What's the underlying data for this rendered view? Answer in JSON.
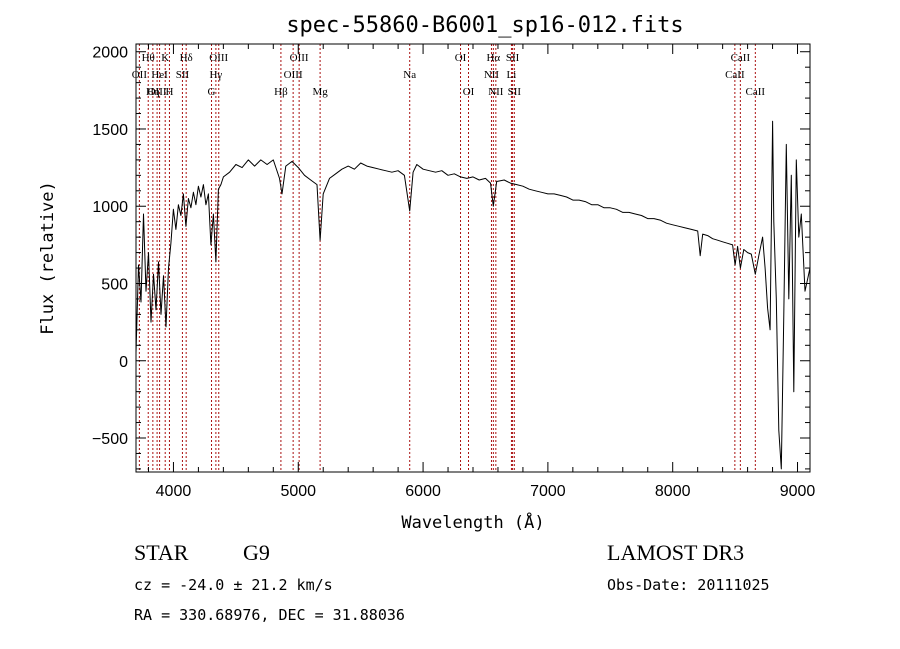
{
  "chart_data": {
    "type": "line",
    "title": "spec-55860-B6001_sp16-012.fits",
    "xlabel": "Wavelength (Å)",
    "ylabel": "Flux (relative)",
    "xlim": [
      3700,
      9100
    ],
    "ylim": [
      -720,
      2050
    ],
    "x_ticks": [
      4000,
      5000,
      6000,
      7000,
      8000,
      9000
    ],
    "y_ticks": [
      -500,
      0,
      500,
      1000,
      1500,
      2000
    ],
    "grid": false,
    "series": [
      {
        "points": [
          [
            3700,
            50
          ],
          [
            3720,
            620
          ],
          [
            3740,
            380
          ],
          [
            3760,
            950
          ],
          [
            3780,
            450
          ],
          [
            3800,
            700
          ],
          [
            3820,
            250
          ],
          [
            3840,
            560
          ],
          [
            3860,
            330
          ],
          [
            3880,
            640
          ],
          [
            3900,
            300
          ],
          [
            3920,
            550
          ],
          [
            3940,
            220
          ],
          [
            3960,
            600
          ],
          [
            3980,
            760
          ],
          [
            4000,
            980
          ],
          [
            4020,
            850
          ],
          [
            4040,
            1010
          ],
          [
            4060,
            940
          ],
          [
            4080,
            1080
          ],
          [
            4100,
            870
          ],
          [
            4120,
            1050
          ],
          [
            4140,
            990
          ],
          [
            4160,
            1090
          ],
          [
            4180,
            1010
          ],
          [
            4200,
            1130
          ],
          [
            4220,
            1060
          ],
          [
            4240,
            1140
          ],
          [
            4260,
            1010
          ],
          [
            4280,
            1080
          ],
          [
            4300,
            750
          ],
          [
            4320,
            950
          ],
          [
            4340,
            640
          ],
          [
            4360,
            1110
          ],
          [
            4380,
            1140
          ],
          [
            4400,
            1190
          ],
          [
            4450,
            1220
          ],
          [
            4500,
            1270
          ],
          [
            4550,
            1250
          ],
          [
            4600,
            1300
          ],
          [
            4650,
            1260
          ],
          [
            4700,
            1300
          ],
          [
            4750,
            1270
          ],
          [
            4800,
            1300
          ],
          [
            4850,
            1180
          ],
          [
            4870,
            1080
          ],
          [
            4900,
            1260
          ],
          [
            4950,
            1290
          ],
          [
            5000,
            1250
          ],
          [
            5050,
            1200
          ],
          [
            5100,
            1170
          ],
          [
            5150,
            1140
          ],
          [
            5175,
            780
          ],
          [
            5200,
            1080
          ],
          [
            5250,
            1180
          ],
          [
            5300,
            1210
          ],
          [
            5350,
            1240
          ],
          [
            5400,
            1260
          ],
          [
            5450,
            1240
          ],
          [
            5500,
            1280
          ],
          [
            5550,
            1260
          ],
          [
            5600,
            1250
          ],
          [
            5650,
            1240
          ],
          [
            5700,
            1230
          ],
          [
            5750,
            1220
          ],
          [
            5800,
            1230
          ],
          [
            5850,
            1200
          ],
          [
            5893,
            970
          ],
          [
            5920,
            1220
          ],
          [
            5950,
            1270
          ],
          [
            6000,
            1240
          ],
          [
            6050,
            1230
          ],
          [
            6100,
            1220
          ],
          [
            6150,
            1230
          ],
          [
            6200,
            1200
          ],
          [
            6250,
            1210
          ],
          [
            6300,
            1190
          ],
          [
            6350,
            1180
          ],
          [
            6400,
            1190
          ],
          [
            6450,
            1170
          ],
          [
            6500,
            1180
          ],
          [
            6540,
            1150
          ],
          [
            6563,
            1000
          ],
          [
            6590,
            1160
          ],
          [
            6650,
            1170
          ],
          [
            6700,
            1150
          ],
          [
            6750,
            1140
          ],
          [
            6800,
            1130
          ],
          [
            6850,
            1110
          ],
          [
            6900,
            1100
          ],
          [
            6950,
            1090
          ],
          [
            7000,
            1080
          ],
          [
            7050,
            1080
          ],
          [
            7100,
            1070
          ],
          [
            7150,
            1060
          ],
          [
            7200,
            1040
          ],
          [
            7250,
            1040
          ],
          [
            7300,
            1030
          ],
          [
            7350,
            1010
          ],
          [
            7400,
            1010
          ],
          [
            7450,
            990
          ],
          [
            7500,
            990
          ],
          [
            7550,
            980
          ],
          [
            7600,
            960
          ],
          [
            7650,
            960
          ],
          [
            7700,
            950
          ],
          [
            7750,
            940
          ],
          [
            7800,
            920
          ],
          [
            7850,
            920
          ],
          [
            7900,
            910
          ],
          [
            7950,
            890
          ],
          [
            8000,
            880
          ],
          [
            8050,
            870
          ],
          [
            8100,
            860
          ],
          [
            8150,
            850
          ],
          [
            8200,
            840
          ],
          [
            8220,
            680
          ],
          [
            8240,
            820
          ],
          [
            8280,
            810
          ],
          [
            8320,
            790
          ],
          [
            8360,
            780
          ],
          [
            8400,
            770
          ],
          [
            8440,
            760
          ],
          [
            8480,
            750
          ],
          [
            8500,
            620
          ],
          [
            8520,
            740
          ],
          [
            8542,
            600
          ],
          [
            8570,
            720
          ],
          [
            8600,
            700
          ],
          [
            8630,
            690
          ],
          [
            8662,
            560
          ],
          [
            8690,
            680
          ],
          [
            8720,
            800
          ],
          [
            8740,
            600
          ],
          [
            8760,
            340
          ],
          [
            8780,
            200
          ],
          [
            8800,
            1550
          ],
          [
            8810,
            900
          ],
          [
            8830,
            400
          ],
          [
            8850,
            -450
          ],
          [
            8870,
            -700
          ],
          [
            8890,
            300
          ],
          [
            8910,
            1400
          ],
          [
            8930,
            400
          ],
          [
            8950,
            1200
          ],
          [
            8970,
            -200
          ],
          [
            8990,
            1300
          ],
          [
            9010,
            800
          ],
          [
            9030,
            950
          ],
          [
            9060,
            450
          ],
          [
            9100,
            600
          ]
        ]
      }
    ],
    "spectral_lines": [
      {
        "label": "Hθ",
        "wavelength": 3798,
        "row": 0
      },
      {
        "label": "K",
        "wavelength": 3934,
        "row": 0
      },
      {
        "label": "Hδ",
        "wavelength": 4102,
        "row": 0
      },
      {
        "label": "OIII",
        "wavelength": 4363,
        "row": 0
      },
      {
        "label": "OIII",
        "wavelength": 5007,
        "row": 0
      },
      {
        "label": "OI",
        "wavelength": 6300,
        "row": 0
      },
      {
        "label": "Hα",
        "wavelength": 6563,
        "row": 0
      },
      {
        "label": "SII",
        "wavelength": 6717,
        "row": 0
      },
      {
        "label": "CaII",
        "wavelength": 8542,
        "row": 0
      },
      {
        "label": "OII",
        "wavelength": 3727,
        "row": 1
      },
      {
        "label": "HeI",
        "wavelength": 3889,
        "row": 1
      },
      {
        "label": "SII",
        "wavelength": 4072,
        "row": 1
      },
      {
        "label": "Hγ",
        "wavelength": 4340,
        "row": 1
      },
      {
        "label": "OIII",
        "wavelength": 4959,
        "row": 1
      },
      {
        "label": "Na",
        "wavelength": 5893,
        "row": 1
      },
      {
        "label": "NII",
        "wavelength": 6548,
        "row": 1
      },
      {
        "label": "Li",
        "wavelength": 6708,
        "row": 1
      },
      {
        "label": "CaII",
        "wavelength": 8498,
        "row": 1
      },
      {
        "label": "OIII",
        "wavelength": 3869,
        "row": 2
      },
      {
        "label": "Hη",
        "wavelength": 3835,
        "row": 2
      },
      {
        "label": "H",
        "wavelength": 3968,
        "row": 2
      },
      {
        "label": "G",
        "wavelength": 4305,
        "row": 2
      },
      {
        "label": "Hβ",
        "wavelength": 4861,
        "row": 2
      },
      {
        "label": "Mg",
        "wavelength": 5175,
        "row": 2
      },
      {
        "label": "OI",
        "wavelength": 6364,
        "row": 2
      },
      {
        "label": "NII",
        "wavelength": 6583,
        "row": 2
      },
      {
        "label": "SII",
        "wavelength": 6731,
        "row": 2
      },
      {
        "label": "CaII",
        "wavelength": 8662,
        "row": 2
      }
    ],
    "colors": {
      "spectrum": "#000000",
      "lines": "#aa1111",
      "axes": "#000000"
    }
  },
  "info": {
    "object_class": "STAR",
    "subclass": "G9",
    "survey": "LAMOST DR3",
    "cz": "cz = -24.0 ± 21.2 km/s",
    "obs_date": "Obs-Date: 20111025",
    "coords": "RA = 330.68976, DEC =  31.88036"
  }
}
